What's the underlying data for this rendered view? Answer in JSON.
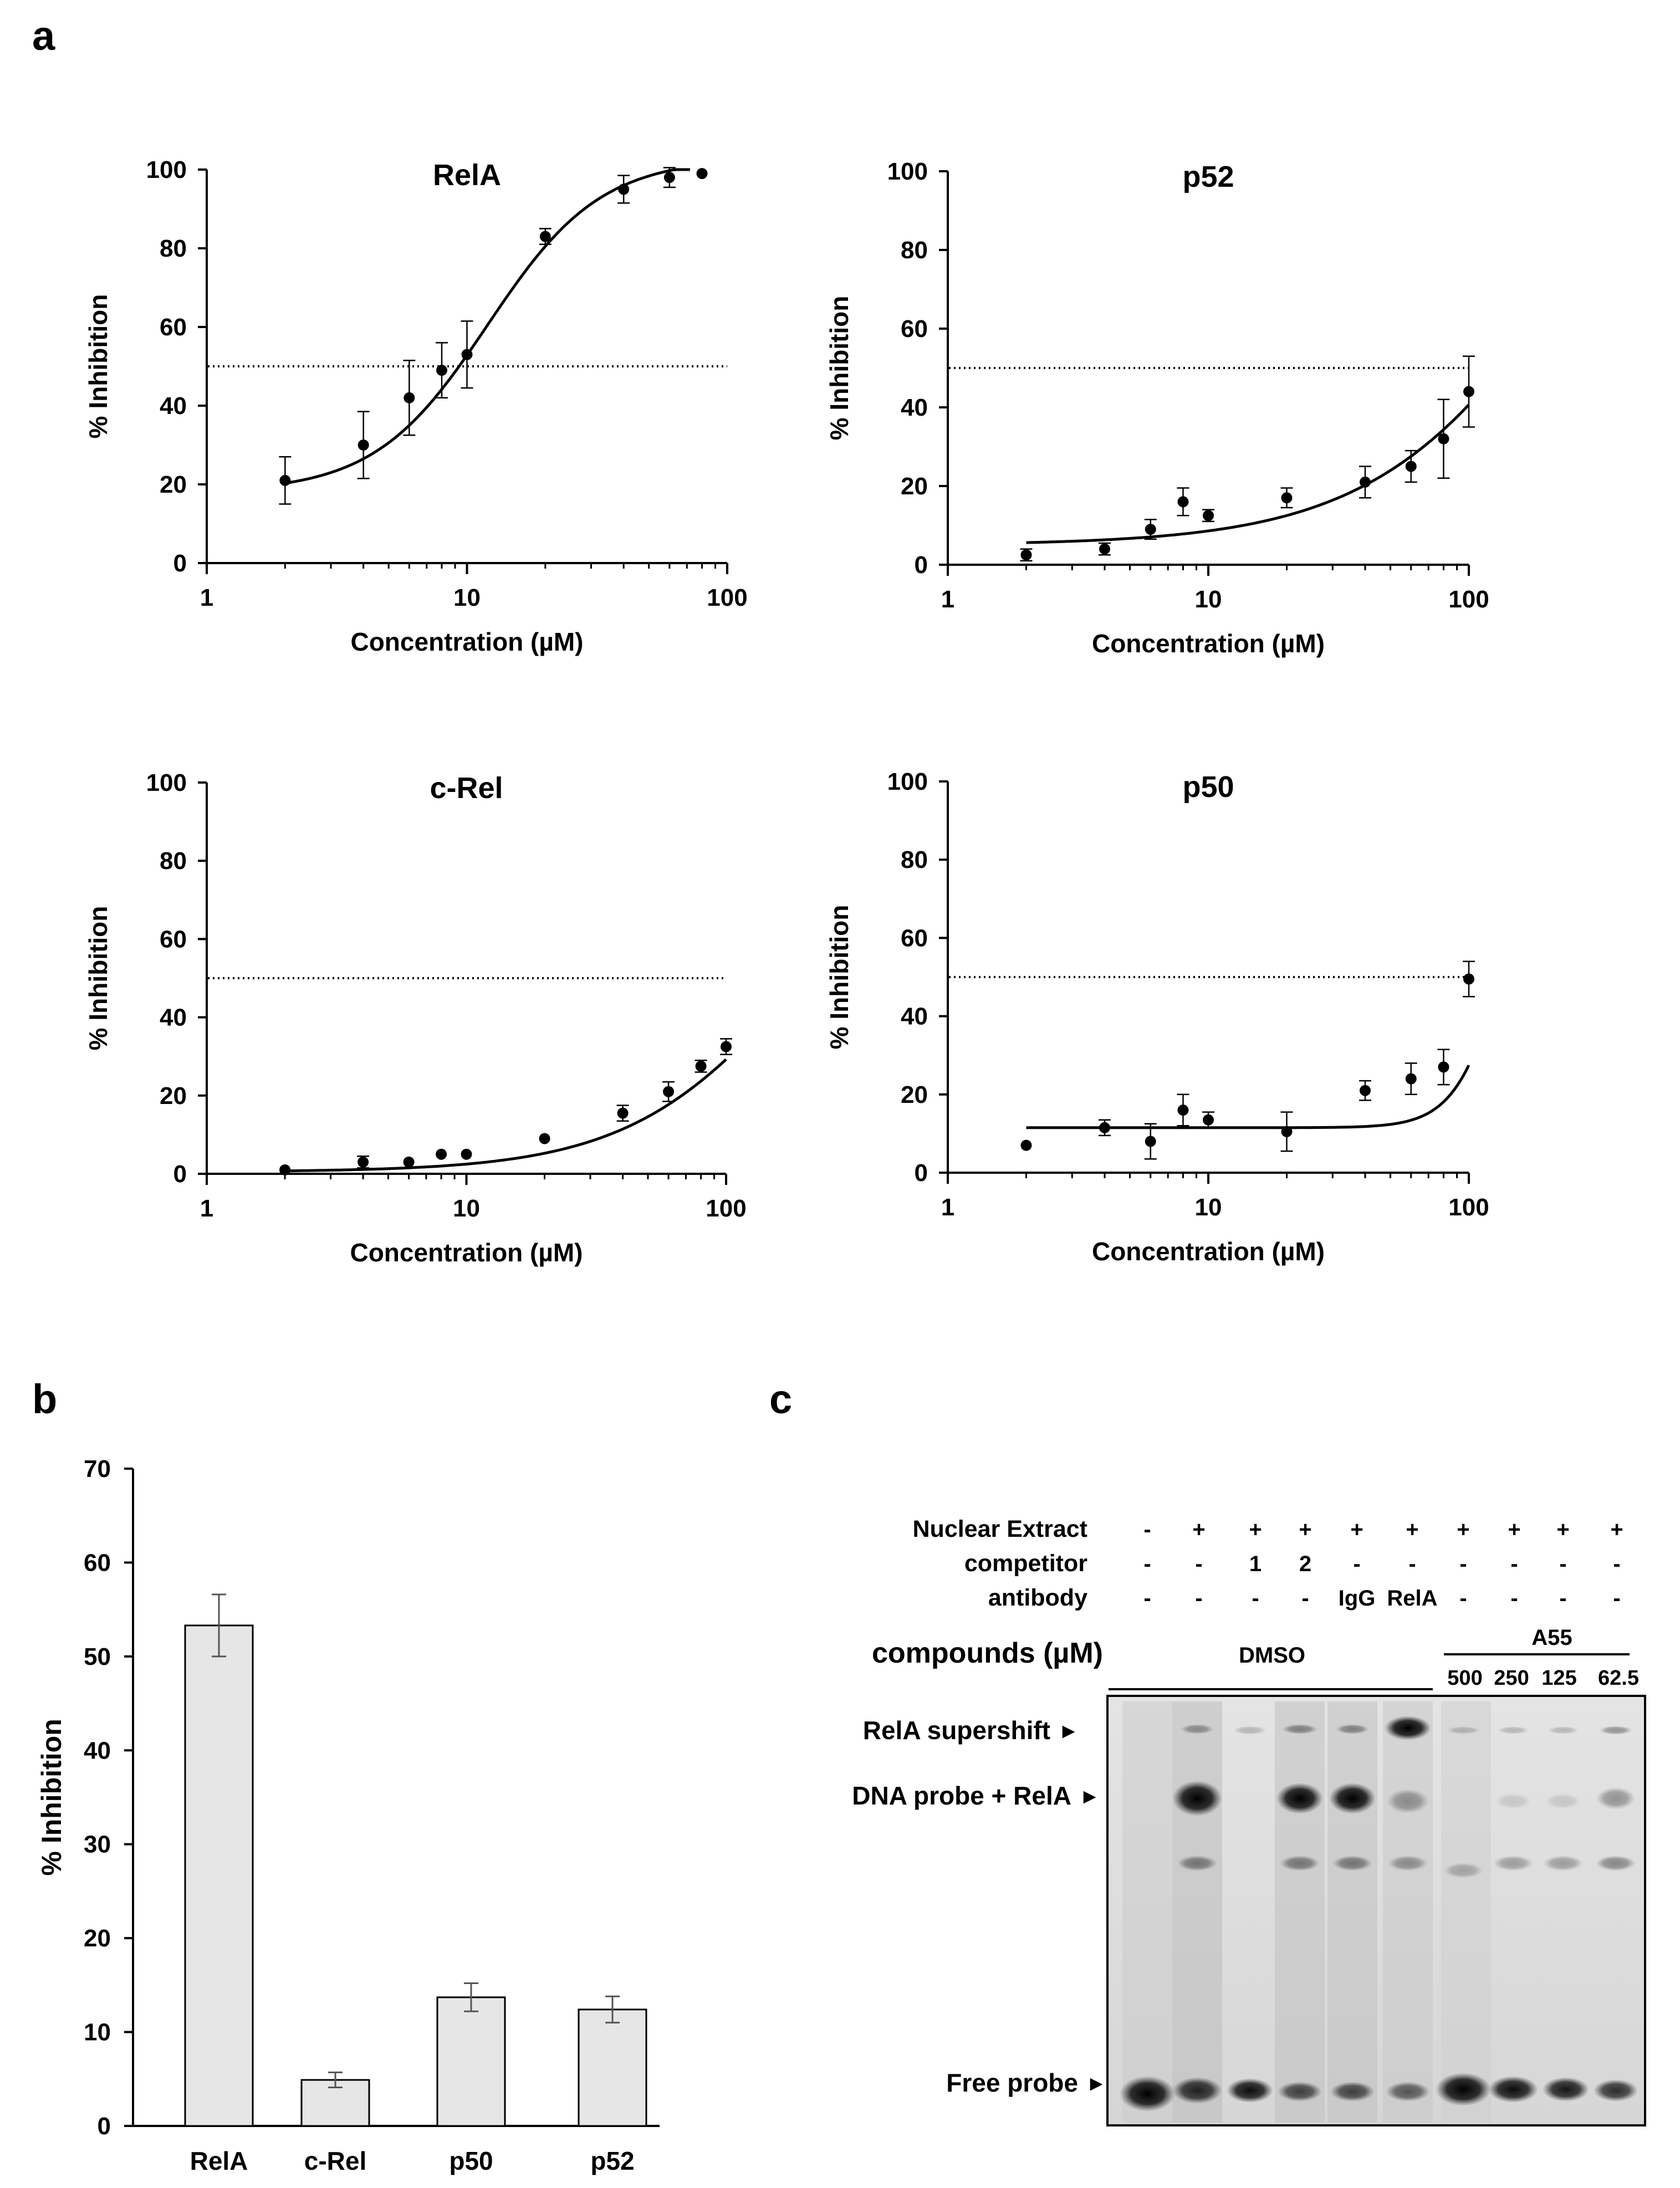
{
  "panels": {
    "a": "a",
    "b": "b",
    "c": "c"
  },
  "chart_data": [
    {
      "type": "scatter",
      "panel": "a",
      "title": "RelA",
      "xlabel": "Concentration (µM)",
      "ylabel": "% Inhibition",
      "xscale": "log",
      "xlim": [
        1,
        100
      ],
      "ylim": [
        0,
        100
      ],
      "xticks": [
        "1",
        "10",
        "100"
      ],
      "yticks": [
        "0",
        "20",
        "40",
        "60",
        "80",
        "100"
      ],
      "reference_line": 50,
      "points": [
        {
          "x": 2,
          "y": 21,
          "err": 6
        },
        {
          "x": 4,
          "y": 30,
          "err": 8.5
        },
        {
          "x": 6,
          "y": 42,
          "err": 9.5
        },
        {
          "x": 8,
          "y": 49,
          "err": 7
        },
        {
          "x": 10,
          "y": 53,
          "err": 8.5
        },
        {
          "x": 20,
          "y": 83,
          "err": 2
        },
        {
          "x": 40,
          "y": 95,
          "err": 3.5
        },
        {
          "x": 60,
          "y": 98,
          "err": 2.5
        },
        {
          "x": 80,
          "y": 99,
          "err": 0
        }
      ],
      "fit": {
        "bottom": 18,
        "top": 103,
        "ec50": 12,
        "hill": 2.0,
        "xmax": 72
      }
    },
    {
      "type": "scatter",
      "panel": "a",
      "title": "p52",
      "xlabel": "Concentration (µM)",
      "ylabel": "% Inhibition",
      "xscale": "log",
      "xlim": [
        1,
        100
      ],
      "ylim": [
        0,
        100
      ],
      "xticks": [
        "1",
        "10",
        "100"
      ],
      "yticks": [
        "0",
        "20",
        "40",
        "60",
        "80",
        "100"
      ],
      "reference_line": 50,
      "points": [
        {
          "x": 2,
          "y": 2.5,
          "err": 1.5
        },
        {
          "x": 4,
          "y": 4,
          "err": 1.5
        },
        {
          "x": 6,
          "y": 9,
          "err": 2.5
        },
        {
          "x": 8,
          "y": 16,
          "err": 3.5
        },
        {
          "x": 10,
          "y": 12.5,
          "err": 1.5
        },
        {
          "x": 20,
          "y": 17,
          "err": 2.5
        },
        {
          "x": 40,
          "y": 21,
          "err": 4
        },
        {
          "x": 60,
          "y": 25,
          "err": 4
        },
        {
          "x": 80,
          "y": 32,
          "err": 10
        },
        {
          "x": 100,
          "y": 44,
          "err": 9
        }
      ],
      "fit": {
        "bottom": 5,
        "top": 160,
        "ec50": 300,
        "hill": 1.1,
        "xmax": 100
      }
    },
    {
      "type": "scatter",
      "panel": "a",
      "title": "c-Rel",
      "xlabel": "Concentration (µM)",
      "ylabel": "% Inhibition",
      "xscale": "log",
      "xlim": [
        1,
        100
      ],
      "ylim": [
        0,
        100
      ],
      "xticks": [
        "1",
        "10",
        "100"
      ],
      "yticks": [
        "0",
        "20",
        "40",
        "60",
        "80",
        "100"
      ],
      "reference_line": 50,
      "points": [
        {
          "x": 2,
          "y": 1,
          "err": 0
        },
        {
          "x": 4,
          "y": 3,
          "err": 1.5
        },
        {
          "x": 6,
          "y": 3,
          "err": 0
        },
        {
          "x": 8,
          "y": 5,
          "err": 0
        },
        {
          "x": 10,
          "y": 5,
          "err": 0
        },
        {
          "x": 20,
          "y": 9,
          "err": 0
        },
        {
          "x": 40,
          "y": 15.5,
          "err": 2
        },
        {
          "x": 60,
          "y": 21,
          "err": 2.5
        },
        {
          "x": 80,
          "y": 27.5,
          "err": 1.5
        },
        {
          "x": 100,
          "y": 32.5,
          "err": 2
        }
      ],
      "fit": {
        "bottom": 0.5,
        "top": 100,
        "ec50": 200,
        "hill": 1.3,
        "xmax": 100
      }
    },
    {
      "type": "scatter",
      "panel": "a",
      "title": "p50",
      "xlabel": "Concentration (µM)",
      "ylabel": "% Inhibition",
      "xscale": "log",
      "xlim": [
        1,
        100
      ],
      "ylim": [
        0,
        100
      ],
      "xticks": [
        "1",
        "10",
        "100"
      ],
      "yticks": [
        "0",
        "20",
        "40",
        "60",
        "80",
        "100"
      ],
      "reference_line": 50,
      "points": [
        {
          "x": 2,
          "y": 7,
          "err": 0
        },
        {
          "x": 4,
          "y": 11.5,
          "err": 2
        },
        {
          "x": 6,
          "y": 8,
          "err": 4.5
        },
        {
          "x": 8,
          "y": 16,
          "err": 4
        },
        {
          "x": 10,
          "y": 13.5,
          "err": 2
        },
        {
          "x": 20,
          "y": 10.5,
          "err": 5
        },
        {
          "x": 40,
          "y": 21,
          "err": 2.5
        },
        {
          "x": 60,
          "y": 24,
          "err": 4
        },
        {
          "x": 80,
          "y": 27,
          "err": 4.5
        },
        {
          "x": 100,
          "y": 49.5,
          "err": 4.5
        }
      ],
      "fit": {
        "bottom": 11.5,
        "top": 100,
        "ec50": 140,
        "hill": 4.5,
        "xmax": 100
      }
    },
    {
      "type": "bar",
      "panel": "b",
      "categories": [
        "RelA",
        "c-Rel",
        "p50",
        "p52"
      ],
      "values": [
        53.3,
        4.9,
        13.7,
        12.4
      ],
      "errors": [
        3.3,
        0.8,
        1.5,
        1.4
      ],
      "ylabel": "% Inhibition",
      "ylim": [
        0,
        70
      ],
      "yticks": [
        "0",
        "10",
        "20",
        "30",
        "40",
        "50",
        "60",
        "70"
      ]
    }
  ],
  "gel": {
    "row_labels": [
      "Nuclear Extract",
      "competitor",
      "antibody"
    ],
    "rows": [
      [
        "-",
        "+",
        "+",
        "+",
        "+",
        "+",
        "+",
        "+",
        "+",
        "+"
      ],
      [
        "-",
        "-",
        "1",
        "2",
        "-",
        "-",
        "-",
        "-",
        "-",
        "-"
      ],
      [
        "-",
        "-",
        "-",
        "-",
        "IgG",
        "RelA",
        "-",
        "-",
        "-",
        "-"
      ]
    ],
    "compounds_label": "compounds (µM)",
    "dmso_label": "DMSO",
    "a55_label": "A55",
    "a55_doses": [
      "500",
      "250",
      "125",
      "62.5"
    ],
    "band_labels": [
      "RelA supershift",
      "DNA probe + RelA",
      "Free probe"
    ],
    "arrow_glyph": "►"
  }
}
